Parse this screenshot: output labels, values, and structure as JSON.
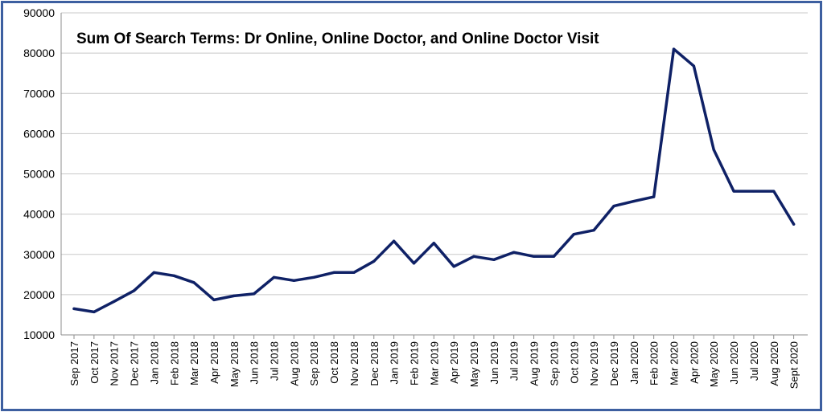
{
  "chart_data": {
    "type": "line",
    "title": "Sum Of Search Terms: Dr Online, Online Doctor, and Online Doctor Visit",
    "xlabel": "",
    "ylabel": "",
    "ylim": [
      10000,
      90000
    ],
    "yticks": [
      "10000",
      "20000",
      "30000",
      "40000",
      "50000",
      "60000",
      "70000",
      "80000",
      "90000"
    ],
    "grid": true,
    "legend": "none",
    "categories": [
      "Sep 2017",
      "Oct 2017",
      "Nov 2017",
      "Dec 2017",
      "Jan 2018",
      "Feb 2018",
      "Mar 2018",
      "Apr 2018",
      "May 2018",
      "Jun 2018",
      "Jul 2018",
      "Aug 2018",
      "Sep 2018",
      "Oct 2018",
      "Nov 2018",
      "Dec 2018",
      "Jan 2019",
      "Feb 2019",
      "Mar 2019",
      "Apr 2019",
      "May 2019",
      "Jun 2019",
      "Jul 2019",
      "Aug 2019",
      "Sep 2019",
      "Oct 2019",
      "Nov 2019",
      "Dec 2019",
      "Jan 2020",
      "Feb 2020",
      "Mar 2020",
      "Apr 2020",
      "May 2020",
      "Jun 2020",
      "Jul 2020",
      "Aug 2020",
      "Sept 2020"
    ],
    "series": [
      {
        "values": [
          16500,
          15700,
          18300,
          21000,
          25500,
          24700,
          23000,
          18700,
          19700,
          20200,
          24300,
          23500,
          24300,
          25500,
          25500,
          28300,
          33300,
          27800,
          32800,
          27000,
          29500,
          28700,
          30500,
          29500,
          29500,
          35000,
          36000,
          42000,
          43200,
          44300,
          81000,
          76800,
          56000,
          45700,
          45700,
          45700,
          37500
        ]
      }
    ],
    "colors": {
      "line": "#0f2166",
      "grid": "#c8c8c8",
      "axis": "#8c8c8c",
      "border": "#3d5fa0"
    }
  }
}
